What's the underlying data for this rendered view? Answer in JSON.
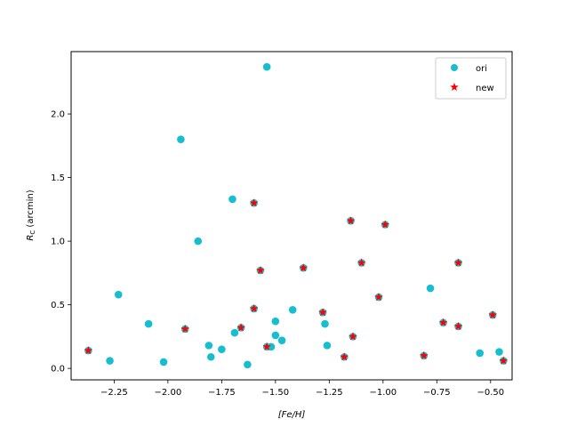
{
  "chart_data": {
    "type": "scatter",
    "xlabel": "[Fe/H]",
    "ylabel": "R_C (arcmin)",
    "xlim": [
      -2.45,
      -0.4
    ],
    "ylim": [
      -0.09,
      2.49
    ],
    "xticks": [
      -2.25,
      -2.0,
      -1.75,
      -1.5,
      -1.25,
      -1.0,
      -0.75,
      -0.5
    ],
    "xtick_labels": [
      "−2.25",
      "−2.00",
      "−1.75",
      "−1.50",
      "−1.25",
      "−1.00",
      "−0.75",
      "−0.50"
    ],
    "yticks": [
      0.0,
      0.5,
      1.0,
      1.5,
      2.0
    ],
    "ytick_labels": [
      "0.0",
      "0.5",
      "1.0",
      "1.5",
      "2.0"
    ],
    "grid": false,
    "legend_position": "top-right",
    "series": [
      {
        "name": "ori",
        "marker": "circle",
        "color": "#17becf",
        "points": [
          [
            -2.37,
            0.14
          ],
          [
            -2.27,
            0.06
          ],
          [
            -2.23,
            0.58
          ],
          [
            -2.09,
            0.35
          ],
          [
            -2.02,
            0.05
          ],
          [
            -1.94,
            1.8
          ],
          [
            -1.92,
            0.31
          ],
          [
            -1.86,
            1.0
          ],
          [
            -1.81,
            0.18
          ],
          [
            -1.8,
            0.09
          ],
          [
            -1.75,
            0.15
          ],
          [
            -1.7,
            1.33
          ],
          [
            -1.69,
            0.28
          ],
          [
            -1.66,
            0.32
          ],
          [
            -1.63,
            0.03
          ],
          [
            -1.6,
            1.3
          ],
          [
            -1.6,
            0.47
          ],
          [
            -1.57,
            0.77
          ],
          [
            -1.54,
            2.37
          ],
          [
            -1.54,
            0.17
          ],
          [
            -1.52,
            0.17
          ],
          [
            -1.5,
            0.26
          ],
          [
            -1.5,
            0.37
          ],
          [
            -1.47,
            0.22
          ],
          [
            -1.42,
            0.46
          ],
          [
            -1.37,
            0.79
          ],
          [
            -1.28,
            0.44
          ],
          [
            -1.27,
            0.35
          ],
          [
            -1.26,
            0.18
          ],
          [
            -1.18,
            0.09
          ],
          [
            -1.15,
            1.16
          ],
          [
            -1.14,
            0.25
          ],
          [
            -1.1,
            0.83
          ],
          [
            -1.02,
            0.56
          ],
          [
            -0.99,
            1.13
          ],
          [
            -0.81,
            0.1
          ],
          [
            -0.78,
            0.63
          ],
          [
            -0.72,
            0.36
          ],
          [
            -0.65,
            0.83
          ],
          [
            -0.65,
            0.33
          ],
          [
            -0.55,
            0.12
          ],
          [
            -0.49,
            0.42
          ],
          [
            -0.46,
            0.13
          ],
          [
            -0.44,
            0.06
          ]
        ]
      },
      {
        "name": "new",
        "marker": "star",
        "color": "#ff0000",
        "points": [
          [
            -2.37,
            0.14
          ],
          [
            -1.92,
            0.31
          ],
          [
            -1.66,
            0.32
          ],
          [
            -1.6,
            1.3
          ],
          [
            -1.6,
            0.47
          ],
          [
            -1.57,
            0.77
          ],
          [
            -1.54,
            0.17
          ],
          [
            -1.37,
            0.79
          ],
          [
            -1.28,
            0.44
          ],
          [
            -1.18,
            0.09
          ],
          [
            -1.15,
            1.16
          ],
          [
            -1.14,
            0.25
          ],
          [
            -1.1,
            0.83
          ],
          [
            -1.02,
            0.56
          ],
          [
            -0.99,
            1.13
          ],
          [
            -0.81,
            0.1
          ],
          [
            -0.72,
            0.36
          ],
          [
            -0.65,
            0.83
          ],
          [
            -0.65,
            0.33
          ],
          [
            -0.49,
            0.42
          ],
          [
            -0.44,
            0.06
          ]
        ]
      }
    ]
  }
}
